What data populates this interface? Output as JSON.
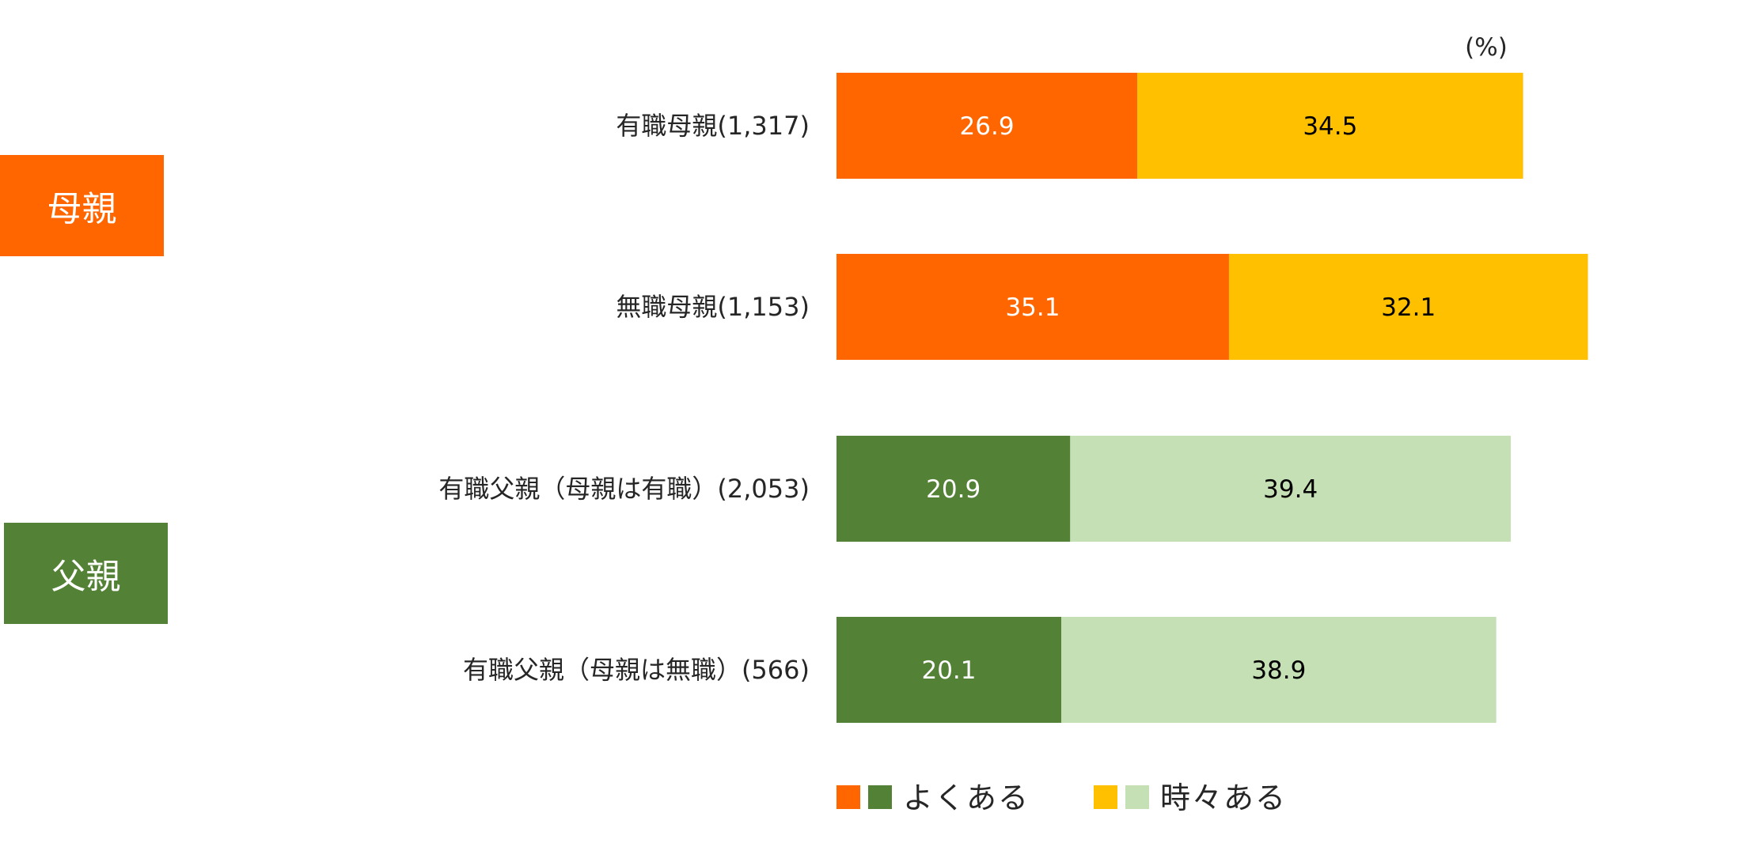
{
  "groups": {
    "mother": {
      "label": "母親",
      "color": "#FF6600"
    },
    "father": {
      "label": "父親",
      "color": "#538135"
    }
  },
  "chart_data": {
    "type": "bar",
    "orientation": "horizontal",
    "stacked": true,
    "unit": "(%)",
    "categories": [
      "有職母親(1,317)",
      "無職母親(1,153)",
      "有職父親（母親は有職）(2,053)",
      "有職父親（母親は無職）(566)"
    ],
    "series": [
      {
        "name": "よくある",
        "values": [
          26.9,
          35.1,
          20.9,
          20.1
        ],
        "colors": [
          "#FF6600",
          "#FF6600",
          "#538135",
          "#538135"
        ],
        "label_color": "#FFFFFF"
      },
      {
        "name": "時々ある",
        "values": [
          34.5,
          32.1,
          39.4,
          38.9
        ],
        "colors": [
          "#FFC000",
          "#FFC000",
          "#C5E0B4",
          "#C5E0B4"
        ],
        "label_color": "#000000"
      }
    ],
    "legend": [
      {
        "label": "よくある",
        "swatches": [
          "#FF6600",
          "#538135"
        ]
      },
      {
        "label": "時々ある",
        "swatches": [
          "#FFC000",
          "#C5E0B4"
        ]
      }
    ],
    "legend_position": "bottom",
    "grid": false
  }
}
